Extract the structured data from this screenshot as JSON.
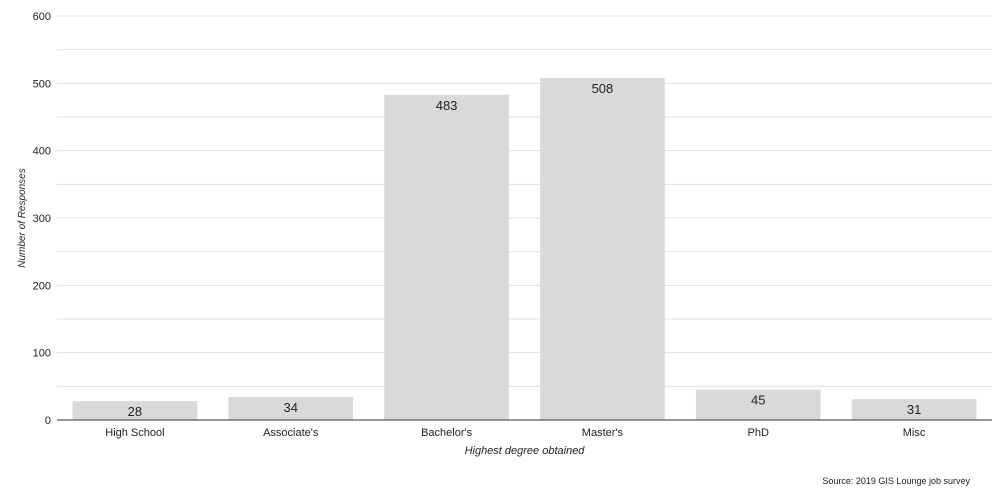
{
  "chart_data": {
    "type": "bar",
    "categories": [
      "High School",
      "Associate's",
      "Bachelor's",
      "Master's",
      "PhD",
      "Misc"
    ],
    "values": [
      28,
      34,
      483,
      508,
      45,
      31
    ],
    "data_labels": [
      "28",
      "34",
      "483",
      "508",
      "45",
      "31"
    ],
    "title": "",
    "xlabel": "Highest degree obtained",
    "ylabel": "Number of Responses",
    "ylim": [
      0,
      600
    ],
    "yticks": [
      0,
      100,
      200,
      300,
      400,
      500,
      600
    ],
    "ytick_labels": [
      "0",
      "100",
      "200",
      "300",
      "400",
      "500",
      "600"
    ],
    "minor_gridlines": true,
    "grid": true,
    "legend": "none",
    "source": "Source: 2019 GIS Lounge job survey",
    "colors": {
      "bar": "#d9d9d9",
      "grid": "#e0e0e0",
      "axis": "#333333",
      "text": "#222222"
    }
  }
}
